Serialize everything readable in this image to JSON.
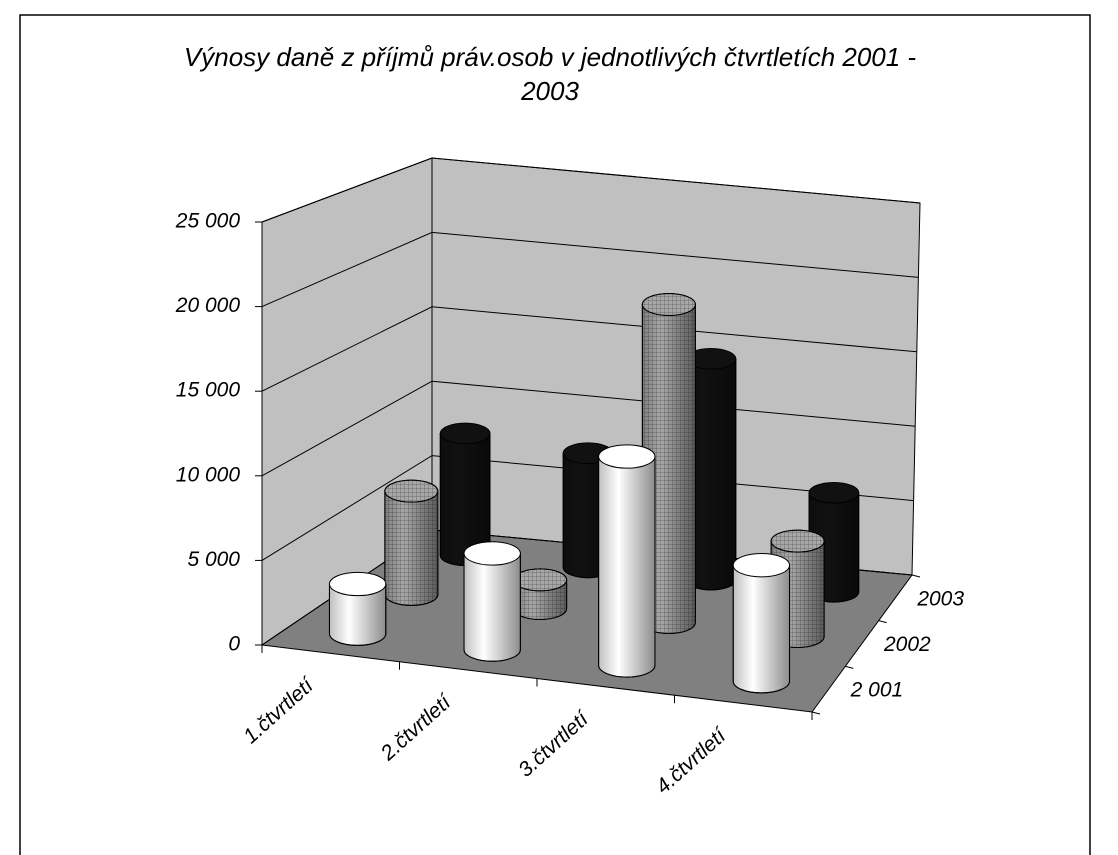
{
  "chart_data": {
    "type": "bar3d_cylinder",
    "title": "Výnosy daně z příjmů práv.osob v jednotlivých čtvrtletích 2001 - 2003",
    "categories": [
      "1.čtvrtletí",
      "2.čtvrtletí",
      "3.čtvrtletí",
      "4.čtvrtletí"
    ],
    "series": [
      {
        "name": "2 001",
        "color": "#ffffff",
        "values": [
          3000,
          5800,
          12600,
          7000
        ]
      },
      {
        "name": "2002",
        "color": "#a8a8a8",
        "values": [
          6500,
          1800,
          20000,
          6000
        ]
      },
      {
        "name": "2003",
        "color": "#111111",
        "values": [
          8000,
          7500,
          14500,
          6500
        ]
      }
    ],
    "ylim": [
      0,
      25000
    ],
    "yticks": [
      0,
      {
        "value": 5000,
        "label": "5 000"
      },
      {
        "value": 10000,
        "label": "10 000"
      },
      {
        "value": 15000,
        "label": "15 000"
      },
      {
        "value": 20000,
        "label": "20 000"
      },
      {
        "value": 25000,
        "label": "25 000"
      }
    ],
    "grid": true
  }
}
